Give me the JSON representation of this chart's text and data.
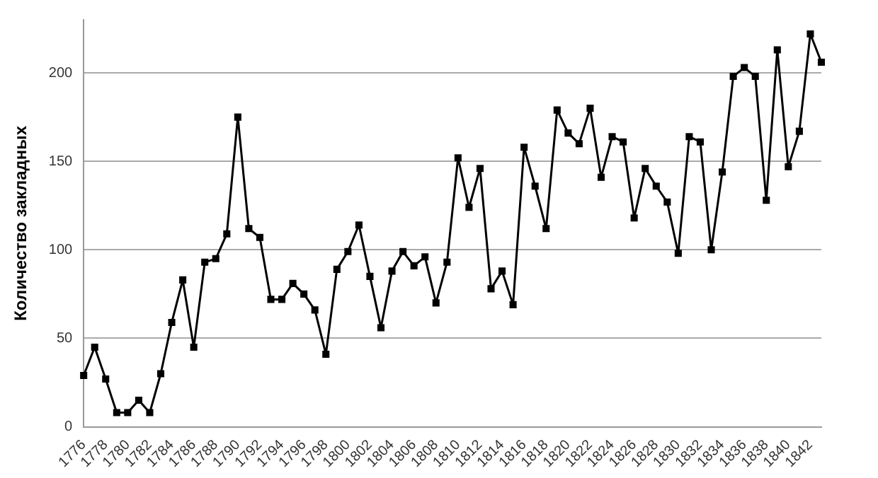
{
  "chart_data": {
    "type": "line",
    "ylabel": "Количество закладных",
    "categories": [
      "1776",
      null,
      "1778",
      null,
      "1780",
      null,
      "1782",
      null,
      "1784",
      null,
      "1786",
      null,
      "1788",
      null,
      "1790",
      null,
      "1792",
      null,
      "1794",
      null,
      "1796",
      null,
      "1798",
      null,
      "1800",
      null,
      "1802",
      null,
      "1804",
      null,
      "1806",
      null,
      "1808",
      null,
      "1810",
      null,
      "1812",
      null,
      "1814",
      null,
      "1816",
      null,
      "1818",
      null,
      "1820",
      null,
      "1822",
      null,
      "1824",
      null,
      "1826",
      null,
      "1828",
      null,
      "1830",
      null,
      "1832",
      null,
      "1834",
      null,
      "1836",
      null,
      "1838",
      null,
      "1840",
      null,
      "1842",
      null
    ],
    "series": [
      {
        "color": "#000000",
        "values": [
          29,
          45,
          27,
          8,
          8,
          15,
          8,
          30,
          59,
          83,
          45,
          93,
          95,
          109,
          175,
          112,
          107,
          72,
          72,
          81,
          75,
          66,
          41,
          89,
          99,
          114,
          85,
          56,
          88,
          99,
          91,
          96,
          70,
          93,
          152,
          124,
          146,
          78,
          88,
          69,
          158,
          136,
          112,
          179,
          166,
          160,
          180,
          141,
          164,
          161,
          118,
          146,
          136,
          127,
          98,
          164,
          161,
          100,
          144,
          198,
          203,
          198,
          128,
          213,
          147,
          167,
          222,
          206
        ]
      }
    ],
    "ylim": [
      0,
      230
    ],
    "yticks": [
      0,
      50,
      100,
      150,
      200
    ],
    "grid": "y",
    "marker": "square",
    "line_style": "solid",
    "legend": false
  }
}
